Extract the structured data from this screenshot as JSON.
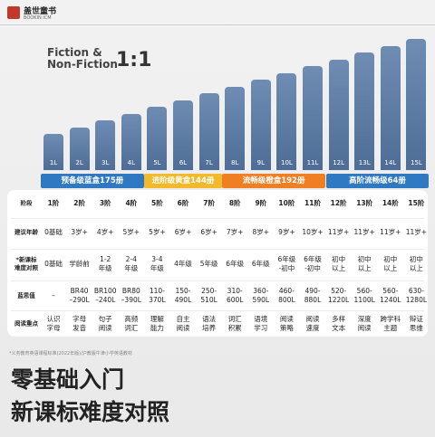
{
  "logo": {
    "name": "盖世童书",
    "sub": "BOOKIN ICM"
  },
  "header": {
    "title": "Fiction &\nNon-Fiction",
    "ratio": "1:1"
  },
  "levels": [
    "1L",
    "2L",
    "3L",
    "4L",
    "5L",
    "6L",
    "7L",
    "8L",
    "9L",
    "10L",
    "11L",
    "12L",
    "13L",
    "14L",
    "15L"
  ],
  "groups": [
    {
      "label": "预备级蓝盒175册",
      "color": "#2f78c2"
    },
    {
      "label": "进阶级黄盒144册",
      "color": "#f2b92b"
    },
    {
      "label": "流畅级橙盒192册",
      "color": "#ef7f22"
    },
    {
      "label": "高阶流畅级64册",
      "color": "#2f78c2"
    }
  ],
  "table": {
    "row_headers": [
      "阶段",
      "建议年龄",
      "*新课标\n难度对照",
      "蓝思值",
      "阅读重点"
    ],
    "rows": [
      [
        "1阶",
        "2阶",
        "3阶",
        "4阶",
        "5阶",
        "6阶",
        "7阶",
        "8阶",
        "9阶",
        "10阶",
        "11阶",
        "12阶",
        "13阶",
        "14阶",
        "15阶"
      ],
      [
        "0基础",
        "3岁+",
        "4岁+",
        "5岁+",
        "5岁+",
        "6岁+",
        "6岁+",
        "7岁+",
        "8岁+",
        "9岁+",
        "10岁+",
        "11岁+",
        "11岁+",
        "11岁+",
        "11岁+"
      ],
      [
        "0基础",
        "学龄前",
        "1-2\n年级",
        "2-4\n年级",
        "3-4\n年级",
        "4年级",
        "5年级",
        "6年级",
        "6年级",
        "6年级\n-初中",
        "6年级\n-初中",
        "初中\n以上",
        "初中\n以上",
        "初中\n以上",
        "初中\n以上"
      ],
      [
        "–",
        "BR40\n–290L",
        "BR100\n–240L",
        "BR80\n–390L",
        "110-\n370L",
        "150-\n490L",
        "250-\n510L",
        "310-\n600L",
        "360-\n590L",
        "460-\n800L",
        "490-\n880L",
        "520-\n1220L",
        "560-\n1100L",
        "560-\n1240L",
        "630-\n1280L"
      ],
      [
        "认识\n字母",
        "字母\n发音",
        "句子\n阅读",
        "高频\n词汇",
        "理解\n能力",
        "自主\n阅读",
        "语法\n培养",
        "词汇\n积累",
        "语境\n学习",
        "阅读\n策略",
        "阅读\n速度",
        "多样\n文本",
        "深度\n阅读",
        "跨学科\n主题",
        "辩证\n思维"
      ]
    ]
  },
  "footnote": "*义务教育英语课程标准(2022年版)/沪教版牛津小学英语教材",
  "footer": [
    "零基础入门",
    "新课标难度对照"
  ]
}
